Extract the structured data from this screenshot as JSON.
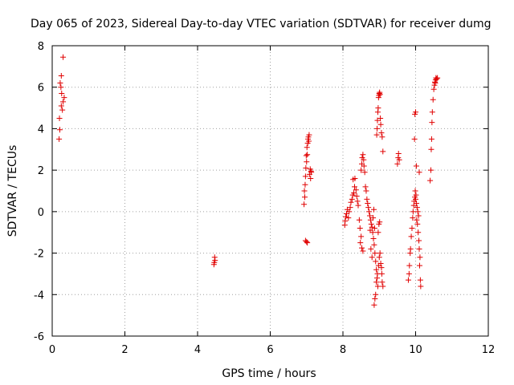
{
  "chart_data": {
    "type": "scatter",
    "title": "Day 065 of 2023, Sidereal Day-to-day VTEC variation (SDTVAR) for receiver dumg",
    "xlabel": "GPS time / hours",
    "ylabel": "SDTVAR / TECUs",
    "xlim": [
      0,
      12
    ],
    "ylim": [
      -6,
      8
    ],
    "x_ticks": [
      "0",
      "2",
      "4",
      "6",
      "8",
      "10",
      "12"
    ],
    "y_ticks": [
      "-6",
      "-4",
      "-2",
      "0",
      "2",
      "4",
      "6",
      "8"
    ],
    "grid": true,
    "marker": "+",
    "color": "#e00000",
    "points": [
      [
        0.3,
        7.45
      ],
      [
        0.25,
        6.55
      ],
      [
        0.22,
        6.2
      ],
      [
        0.24,
        6.0
      ],
      [
        0.26,
        5.7
      ],
      [
        0.33,
        5.5
      ],
      [
        0.3,
        5.3
      ],
      [
        0.25,
        5.1
      ],
      [
        0.28,
        4.9
      ],
      [
        0.2,
        4.5
      ],
      [
        0.21,
        3.95
      ],
      [
        0.19,
        3.5
      ],
      [
        4.47,
        -2.2
      ],
      [
        4.48,
        -2.35
      ],
      [
        4.46,
        -2.45
      ],
      [
        4.45,
        -2.55
      ],
      [
        6.93,
        0.35
      ],
      [
        6.95,
        0.7
      ],
      [
        6.94,
        1.0
      ],
      [
        6.96,
        1.3
      ],
      [
        6.97,
        1.7
      ],
      [
        6.98,
        2.1
      ],
      [
        7.0,
        2.4
      ],
      [
        6.99,
        2.7
      ],
      [
        7.02,
        2.75
      ],
      [
        7.01,
        3.1
      ],
      [
        7.03,
        3.3
      ],
      [
        7.04,
        3.5
      ],
      [
        7.05,
        3.6
      ],
      [
        7.07,
        3.7
      ],
      [
        7.06,
        3.4
      ],
      [
        7.1,
        2.05
      ],
      [
        7.12,
        1.95
      ],
      [
        7.08,
        1.8
      ],
      [
        7.11,
        1.6
      ],
      [
        7.13,
        1.9
      ],
      [
        6.97,
        -1.4
      ],
      [
        7.0,
        -1.45
      ],
      [
        7.02,
        -1.5
      ],
      [
        8.05,
        -0.65
      ],
      [
        8.06,
        -0.45
      ],
      [
        8.08,
        -0.25
      ],
      [
        8.1,
        -0.1
      ],
      [
        8.12,
        0.1
      ],
      [
        8.15,
        -0.3
      ],
      [
        8.17,
        0.0
      ],
      [
        8.2,
        0.2
      ],
      [
        8.22,
        0.45
      ],
      [
        8.25,
        0.6
      ],
      [
        8.27,
        0.8
      ],
      [
        8.3,
        0.9
      ],
      [
        8.32,
        1.2
      ],
      [
        8.28,
        1.55
      ],
      [
        8.33,
        1.6
      ],
      [
        8.36,
        1.05
      ],
      [
        8.38,
        0.75
      ],
      [
        8.4,
        0.5
      ],
      [
        8.42,
        0.3
      ],
      [
        8.45,
        -0.4
      ],
      [
        8.47,
        -0.8
      ],
      [
        8.5,
        -1.2
      ],
      [
        8.48,
        -1.5
      ],
      [
        8.52,
        -1.75
      ],
      [
        8.55,
        -1.9
      ],
      [
        8.5,
        2.0
      ],
      [
        8.52,
        2.3
      ],
      [
        8.53,
        2.6
      ],
      [
        8.55,
        2.75
      ],
      [
        8.57,
        2.5
      ],
      [
        8.58,
        2.2
      ],
      [
        8.6,
        1.9
      ],
      [
        8.62,
        1.2
      ],
      [
        8.64,
        1.0
      ],
      [
        8.66,
        0.6
      ],
      [
        8.68,
        0.4
      ],
      [
        8.7,
        0.2
      ],
      [
        8.72,
        0.0
      ],
      [
        8.74,
        -0.2
      ],
      [
        8.76,
        -0.4
      ],
      [
        8.78,
        -0.6
      ],
      [
        8.8,
        -0.75
      ],
      [
        8.82,
        -1.0
      ],
      [
        8.84,
        -1.3
      ],
      [
        8.86,
        -1.6
      ],
      [
        8.88,
        -2.0
      ],
      [
        8.9,
        -2.4
      ],
      [
        8.92,
        -2.8
      ],
      [
        8.94,
        -3.2
      ],
      [
        8.96,
        -3.6
      ],
      [
        8.9,
        -4.0
      ],
      [
        8.88,
        -4.2
      ],
      [
        8.86,
        -4.5
      ],
      [
        8.92,
        -3.4
      ],
      [
        8.95,
        -3.0
      ],
      [
        8.98,
        -2.6
      ],
      [
        9.0,
        -2.2
      ],
      [
        9.02,
        -2.0
      ],
      [
        9.04,
        -2.5
      ],
      [
        9.06,
        -2.7
      ],
      [
        9.08,
        -3.4
      ],
      [
        9.1,
        -3.6
      ],
      [
        9.07,
        -3.0
      ],
      [
        8.97,
        -1.0
      ],
      [
        8.99,
        -0.6
      ],
      [
        9.01,
        -0.5
      ],
      [
        8.93,
        3.7
      ],
      [
        8.94,
        4.0
      ],
      [
        8.95,
        4.4
      ],
      [
        8.96,
        4.8
      ],
      [
        8.97,
        5.0
      ],
      [
        8.98,
        5.5
      ],
      [
        9.0,
        5.7
      ],
      [
        9.01,
        5.75
      ],
      [
        9.02,
        5.65
      ],
      [
        8.99,
        5.6
      ],
      [
        9.03,
        4.5
      ],
      [
        9.04,
        4.2
      ],
      [
        9.06,
        3.8
      ],
      [
        9.08,
        3.6
      ],
      [
        9.1,
        2.9
      ],
      [
        8.75,
        -0.9
      ],
      [
        8.77,
        -1.8
      ],
      [
        8.8,
        -2.2
      ],
      [
        8.83,
        -0.3
      ],
      [
        8.85,
        0.1
      ],
      [
        8.87,
        -0.8
      ],
      [
        9.5,
        2.3
      ],
      [
        9.52,
        2.6
      ],
      [
        9.53,
        2.8
      ],
      [
        9.55,
        2.5
      ],
      [
        9.8,
        -3.3
      ],
      [
        9.82,
        -3.0
      ],
      [
        9.83,
        -2.6
      ],
      [
        9.85,
        -2.0
      ],
      [
        9.86,
        -1.8
      ],
      [
        9.88,
        -1.2
      ],
      [
        9.9,
        -0.8
      ],
      [
        9.92,
        -0.3
      ],
      [
        9.93,
        0.0
      ],
      [
        9.95,
        0.3
      ],
      [
        9.96,
        0.5
      ],
      [
        9.98,
        0.7
      ],
      [
        10.0,
        0.6
      ],
      [
        10.02,
        0.4
      ],
      [
        10.04,
        0.2
      ],
      [
        10.06,
        0.0
      ],
      [
        10.08,
        -0.2
      ],
      [
        10.05,
        -0.6
      ],
      [
        10.07,
        -1.0
      ],
      [
        10.09,
        -1.4
      ],
      [
        10.1,
        -1.8
      ],
      [
        10.12,
        -2.2
      ],
      [
        10.11,
        -2.6
      ],
      [
        10.13,
        -3.3
      ],
      [
        10.14,
        -3.6
      ],
      [
        9.97,
        3.5
      ],
      [
        9.98,
        4.7
      ],
      [
        10.0,
        4.8
      ],
      [
        10.02,
        2.2
      ],
      [
        10.1,
        1.9
      ],
      [
        9.99,
        1.0
      ],
      [
        10.01,
        0.8
      ],
      [
        10.03,
        -0.4
      ],
      [
        10.4,
        1.5
      ],
      [
        10.42,
        2.0
      ],
      [
        10.43,
        3.0
      ],
      [
        10.44,
        3.5
      ],
      [
        10.45,
        4.3
      ],
      [
        10.46,
        4.8
      ],
      [
        10.48,
        5.4
      ],
      [
        10.5,
        5.9
      ],
      [
        10.52,
        6.1
      ],
      [
        10.53,
        6.25
      ],
      [
        10.55,
        6.35
      ],
      [
        10.56,
        6.45
      ],
      [
        10.58,
        6.4
      ],
      [
        10.6,
        6.45
      ],
      [
        10.54,
        6.2
      ]
    ]
  }
}
